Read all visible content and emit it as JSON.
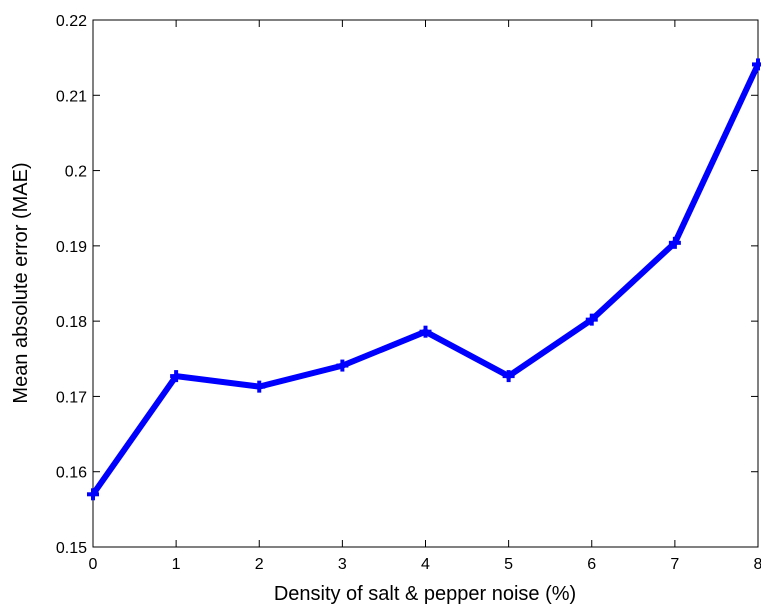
{
  "chart_data": {
    "type": "line",
    "xlabel": "Density of salt & pepper noise (%)",
    "ylabel": "Mean absolute error (MAE)",
    "xlim": [
      0,
      8
    ],
    "ylim": [
      0.15,
      0.22
    ],
    "xticks": [
      "0",
      "1",
      "2",
      "3",
      "4",
      "5",
      "6",
      "7",
      "8"
    ],
    "yticks": [
      "0.15",
      "0.16",
      "0.17",
      "0.18",
      "0.19",
      "0.2",
      "0.21",
      "0.22"
    ],
    "grid": false,
    "x": [
      0,
      1,
      2,
      3,
      4,
      5,
      6,
      7,
      8
    ],
    "series": [
      {
        "values": [
          0.157,
          0.1727,
          0.1713,
          0.1741,
          0.1786,
          0.1727,
          0.1802,
          0.1904,
          0.2141
        ],
        "color": "#0000ff",
        "marker": "plus"
      }
    ]
  }
}
